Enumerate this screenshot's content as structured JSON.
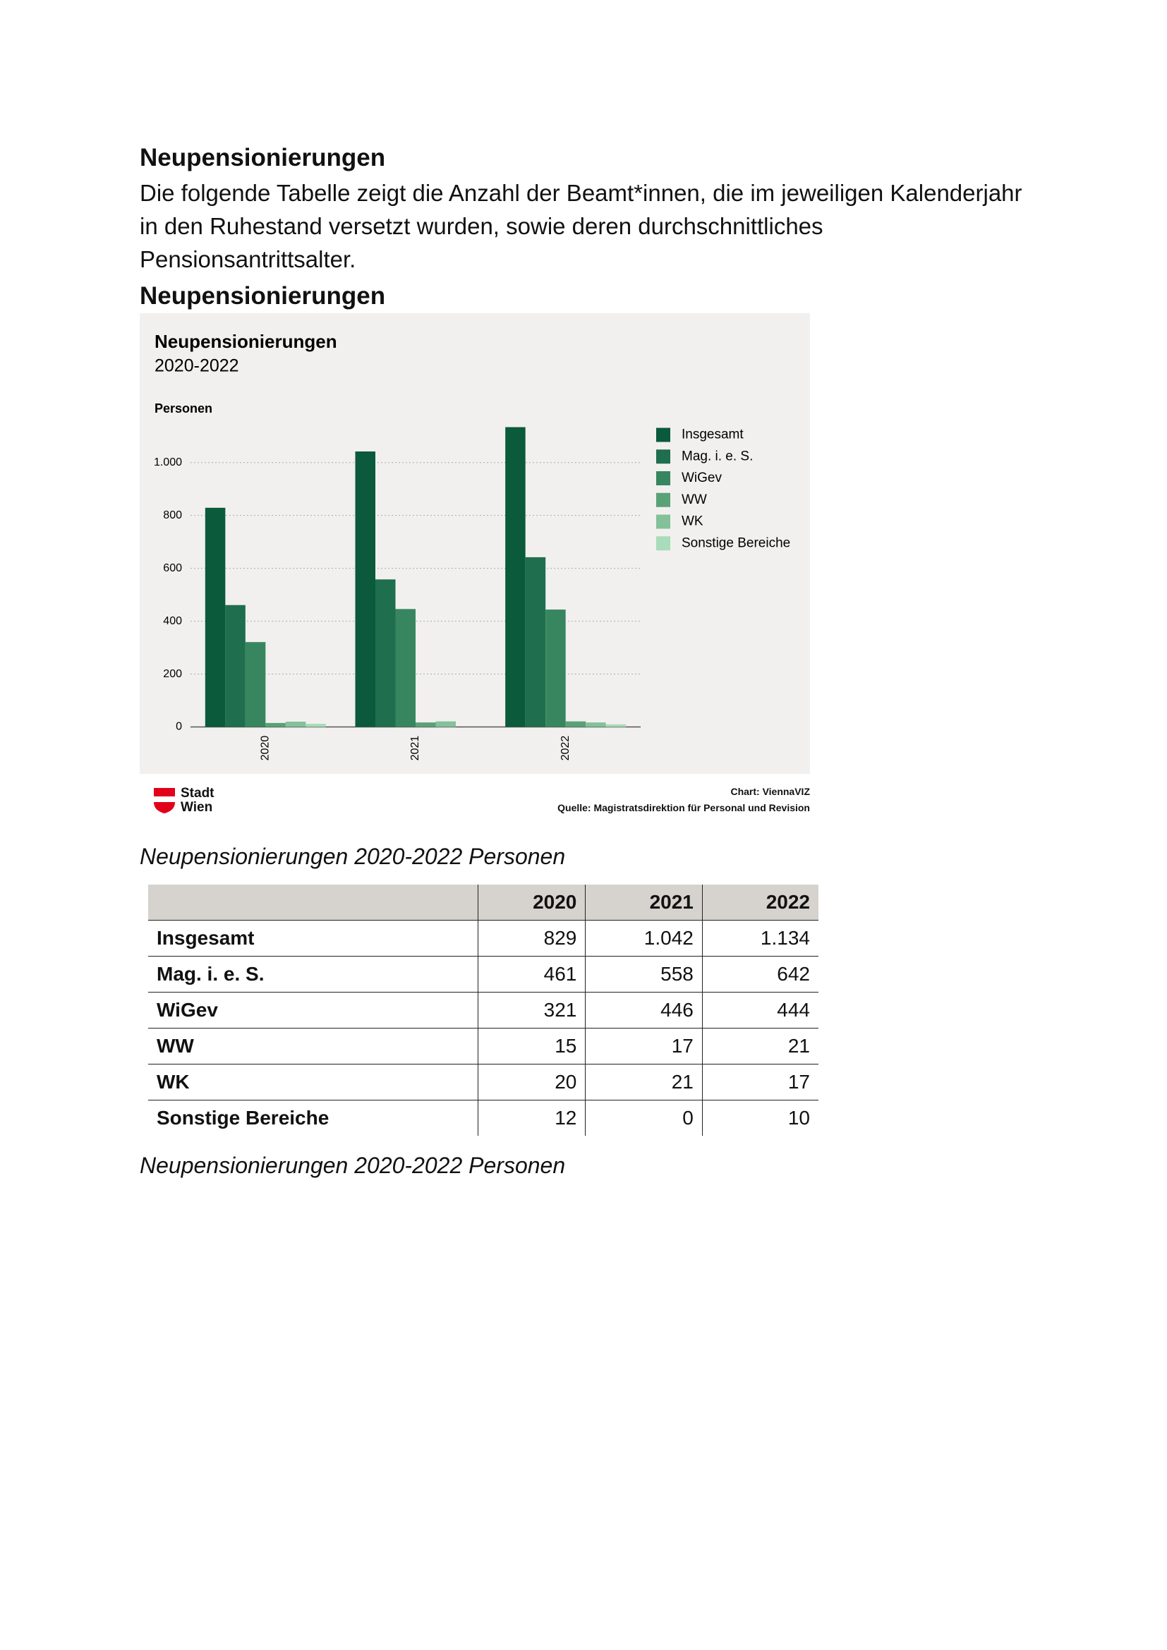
{
  "heading": "Neupensionierungen",
  "intro": "Die folgende Tabelle zeigt die Anzahl der Beamt*innen, die im jeweiligen Kalenderjahr in den Ruhestand versetzt wurden, sowie deren durchschnittliches Pensionsantrittsalter.",
  "subheading": "Neupensionierungen",
  "chart_data": {
    "type": "bar",
    "title": "Neupensionierungen",
    "subtitle": "2020-2022",
    "y_label": "Personen",
    "categories": [
      "2020",
      "2021",
      "2022"
    ],
    "series": [
      {
        "name": "Insgesamt",
        "color": "#0b5a3b",
        "values": [
          829,
          1042,
          1134
        ]
      },
      {
        "name": "Mag. i. e. S.",
        "color": "#1f6e4d",
        "values": [
          461,
          558,
          642
        ]
      },
      {
        "name": "WiGev",
        "color": "#378660",
        "values": [
          321,
          446,
          444
        ]
      },
      {
        "name": "WW",
        "color": "#59a277",
        "values": [
          15,
          17,
          21
        ]
      },
      {
        "name": "WK",
        "color": "#83c199",
        "values": [
          20,
          21,
          17
        ]
      },
      {
        "name": "Sonstige Bereiche",
        "color": "#a9dcba",
        "values": [
          12,
          0,
          10
        ]
      }
    ],
    "ylim": [
      0,
      1150
    ],
    "yticks": [
      0,
      200,
      400,
      600,
      800,
      {
        "value": 1000,
        "label": "1.000"
      }
    ],
    "grid": true
  },
  "chart_footer": {
    "logo": [
      "Stadt",
      "Wien"
    ],
    "credit": "Chart: ViennaVIZ",
    "source": "Quelle: Magistratsdirektion für Personal und Revision"
  },
  "table_caption": "Neupensionierungen 2020-2022 Personen",
  "table": {
    "columns": [
      "2020",
      "2021",
      "2022"
    ],
    "rows": [
      [
        "Insgesamt",
        "829",
        "1.042",
        "1.134"
      ],
      [
        "Mag. i. e. S.",
        "461",
        "558",
        "642"
      ],
      [
        "WiGev",
        "321",
        "446",
        "444"
      ],
      [
        "WW",
        "15",
        "17",
        "21"
      ],
      [
        "WK",
        "20",
        "21",
        "17"
      ],
      [
        "Sonstige Bereiche",
        "12",
        "0",
        "10"
      ]
    ]
  },
  "table_note": "Neupensionierungen 2020-2022 Personen"
}
